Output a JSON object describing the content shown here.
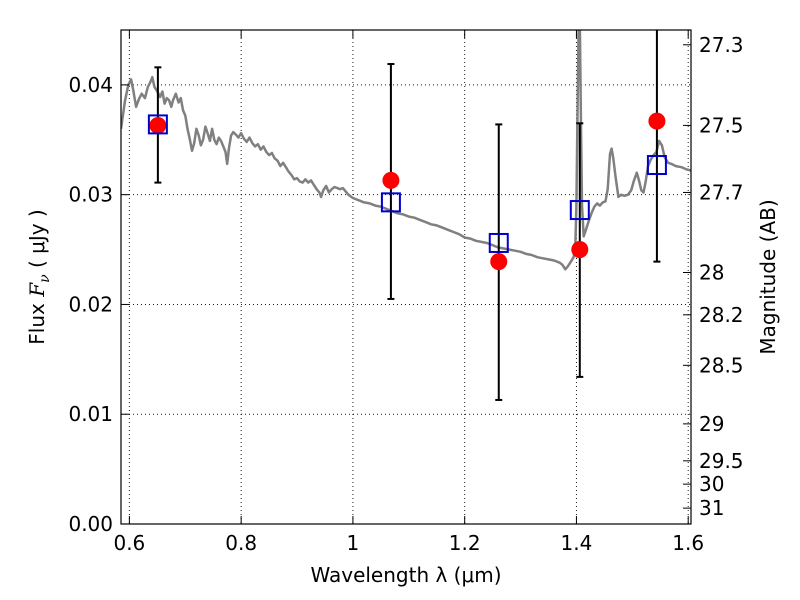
{
  "chart_data": {
    "type": "scatter",
    "xlabel": "Wavelength  λ (μm)",
    "ylabel_prefix": "Flux ",
    "ylabel_sym": "F",
    "ylabel_sub": "ν",
    "ylabel_unit": " ( μJy )",
    "y2label": "Magnitude (AB)",
    "xlim": [
      0.585,
      1.605
    ],
    "ylim": [
      0.0,
      0.045
    ],
    "grid": true,
    "xticks": [
      {
        "value": 0.6,
        "label": "0.6"
      },
      {
        "value": 0.8,
        "label": "0.8"
      },
      {
        "value": 1.0,
        "label": "1"
      },
      {
        "value": 1.2,
        "label": "1.2"
      },
      {
        "value": 1.4,
        "label": "1.4"
      },
      {
        "value": 1.6,
        "label": "1.6"
      }
    ],
    "yticks": [
      {
        "value": 0.0,
        "label": "0.00"
      },
      {
        "value": 0.01,
        "label": "0.01"
      },
      {
        "value": 0.02,
        "label": "0.02"
      },
      {
        "value": 0.03,
        "label": "0.03"
      },
      {
        "value": 0.04,
        "label": "0.04"
      }
    ],
    "y2ticks": [
      {
        "mag": 27.3,
        "label": "27.3"
      },
      {
        "mag": 27.5,
        "label": "27.5"
      },
      {
        "mag": 27.7,
        "label": "27.7"
      },
      {
        "mag": 28.0,
        "label": "28"
      },
      {
        "mag": 28.2,
        "label": "28.2"
      },
      {
        "mag": 28.5,
        "label": "28.5"
      },
      {
        "mag": 29.0,
        "label": "29"
      },
      {
        "mag": 29.5,
        "label": "29.5"
      },
      {
        "mag": 30.0,
        "label": "30"
      },
      {
        "mag": 31.0,
        "label": "31"
      }
    ],
    "model_spectrum": {
      "color": "#808080",
      "points": [
        [
          0.585,
          0.036
        ],
        [
          0.592,
          0.0385
        ],
        [
          0.598,
          0.04
        ],
        [
          0.603,
          0.0405
        ],
        [
          0.607,
          0.0395
        ],
        [
          0.612,
          0.038
        ],
        [
          0.617,
          0.0387
        ],
        [
          0.622,
          0.0392
        ],
        [
          0.628,
          0.0388
        ],
        [
          0.633,
          0.0398
        ],
        [
          0.637,
          0.0402
        ],
        [
          0.641,
          0.0407
        ],
        [
          0.645,
          0.0398
        ],
        [
          0.65,
          0.0394
        ],
        [
          0.655,
          0.0389
        ],
        [
          0.659,
          0.0394
        ],
        [
          0.663,
          0.0383
        ],
        [
          0.667,
          0.0388
        ],
        [
          0.671,
          0.0386
        ],
        [
          0.675,
          0.038
        ],
        [
          0.678,
          0.0386
        ],
        [
          0.683,
          0.0392
        ],
        [
          0.688,
          0.0384
        ],
        [
          0.692,
          0.0388
        ],
        [
          0.696,
          0.0377
        ],
        [
          0.7,
          0.0372
        ],
        [
          0.704,
          0.036
        ],
        [
          0.708,
          0.0351
        ],
        [
          0.712,
          0.034
        ],
        [
          0.716,
          0.0347
        ],
        [
          0.72,
          0.036
        ],
        [
          0.724,
          0.0354
        ],
        [
          0.728,
          0.0345
        ],
        [
          0.732,
          0.035
        ],
        [
          0.736,
          0.0362
        ],
        [
          0.74,
          0.0356
        ],
        [
          0.744,
          0.0349
        ],
        [
          0.748,
          0.036
        ],
        [
          0.752,
          0.035
        ],
        [
          0.756,
          0.0346
        ],
        [
          0.76,
          0.0352
        ],
        [
          0.764,
          0.0349
        ],
        [
          0.768,
          0.0344
        ],
        [
          0.772,
          0.0339
        ],
        [
          0.775,
          0.0328
        ],
        [
          0.778,
          0.0342
        ],
        [
          0.782,
          0.0354
        ],
        [
          0.786,
          0.0357
        ],
        [
          0.79,
          0.0355
        ],
        [
          0.795,
          0.0352
        ],
        [
          0.8,
          0.0356
        ],
        [
          0.805,
          0.0351
        ],
        [
          0.81,
          0.0348
        ],
        [
          0.815,
          0.0352
        ],
        [
          0.82,
          0.0347
        ],
        [
          0.825,
          0.0344
        ],
        [
          0.83,
          0.0346
        ],
        [
          0.835,
          0.0341
        ],
        [
          0.84,
          0.0344
        ],
        [
          0.845,
          0.0339
        ],
        [
          0.85,
          0.0336
        ],
        [
          0.855,
          0.0338
        ],
        [
          0.86,
          0.0333
        ],
        [
          0.865,
          0.0331
        ],
        [
          0.87,
          0.0326
        ],
        [
          0.875,
          0.0329
        ],
        [
          0.88,
          0.0325
        ],
        [
          0.885,
          0.0321
        ],
        [
          0.89,
          0.0318
        ],
        [
          0.895,
          0.0314
        ],
        [
          0.9,
          0.0315
        ],
        [
          0.905,
          0.0312
        ],
        [
          0.91,
          0.0311
        ],
        [
          0.915,
          0.0314
        ],
        [
          0.92,
          0.0311
        ],
        [
          0.925,
          0.0313
        ],
        [
          0.93,
          0.0309
        ],
        [
          0.935,
          0.0305
        ],
        [
          0.94,
          0.0302
        ],
        [
          0.943,
          0.0298
        ],
        [
          0.947,
          0.0304
        ],
        [
          0.952,
          0.0308
        ],
        [
          0.957,
          0.0302
        ],
        [
          0.962,
          0.0305
        ],
        [
          0.967,
          0.0307
        ],
        [
          0.972,
          0.0306
        ],
        [
          0.977,
          0.0305
        ],
        [
          0.982,
          0.0306
        ],
        [
          0.987,
          0.0303
        ],
        [
          0.992,
          0.03
        ],
        [
          1.0,
          0.0297
        ],
        [
          1.01,
          0.0295
        ],
        [
          1.02,
          0.0293
        ],
        [
          1.03,
          0.0292
        ],
        [
          1.04,
          0.029
        ],
        [
          1.05,
          0.0289
        ],
        [
          1.06,
          0.0287
        ],
        [
          1.07,
          0.0285
        ],
        [
          1.08,
          0.0283
        ],
        [
          1.09,
          0.0282
        ],
        [
          1.1,
          0.028
        ],
        [
          1.11,
          0.0279
        ],
        [
          1.12,
          0.0277
        ],
        [
          1.13,
          0.0275
        ],
        [
          1.14,
          0.0273
        ],
        [
          1.15,
          0.0272
        ],
        [
          1.16,
          0.027
        ],
        [
          1.17,
          0.0268
        ],
        [
          1.18,
          0.0266
        ],
        [
          1.19,
          0.0264
        ],
        [
          1.2,
          0.0261
        ],
        [
          1.21,
          0.026
        ],
        [
          1.22,
          0.0258
        ],
        [
          1.23,
          0.0257
        ],
        [
          1.24,
          0.0256
        ],
        [
          1.25,
          0.0254
        ],
        [
          1.26,
          0.0252
        ],
        [
          1.27,
          0.0251
        ],
        [
          1.28,
          0.025
        ],
        [
          1.29,
          0.0249
        ],
        [
          1.3,
          0.0248
        ],
        [
          1.31,
          0.0246
        ],
        [
          1.32,
          0.0245
        ],
        [
          1.33,
          0.0243
        ],
        [
          1.34,
          0.0242
        ],
        [
          1.35,
          0.0241
        ],
        [
          1.36,
          0.024
        ],
        [
          1.37,
          0.0238
        ],
        [
          1.375,
          0.0236
        ],
        [
          1.38,
          0.0232
        ],
        [
          1.385,
          0.0235
        ],
        [
          1.39,
          0.0239
        ],
        [
          1.395,
          0.0243
        ],
        [
          1.398,
          0.0252
        ],
        [
          1.4,
          0.029
        ],
        [
          1.402,
          0.038
        ],
        [
          1.404,
          0.046
        ],
        [
          1.406,
          0.046
        ],
        [
          1.408,
          0.037
        ],
        [
          1.41,
          0.029
        ],
        [
          1.413,
          0.0262
        ],
        [
          1.417,
          0.0268
        ],
        [
          1.422,
          0.0276
        ],
        [
          1.427,
          0.0283
        ],
        [
          1.432,
          0.0289
        ],
        [
          1.437,
          0.0292
        ],
        [
          1.442,
          0.029
        ],
        [
          1.447,
          0.0293
        ],
        [
          1.452,
          0.0294
        ],
        [
          1.456,
          0.0305
        ],
        [
          1.46,
          0.0337
        ],
        [
          1.463,
          0.0342
        ],
        [
          1.466,
          0.0333
        ],
        [
          1.47,
          0.0316
        ],
        [
          1.475,
          0.0298
        ],
        [
          1.48,
          0.03
        ],
        [
          1.486,
          0.0299
        ],
        [
          1.492,
          0.03
        ],
        [
          1.498,
          0.0304
        ],
        [
          1.503,
          0.0313
        ],
        [
          1.508,
          0.032
        ],
        [
          1.512,
          0.0313
        ],
        [
          1.516,
          0.0304
        ],
        [
          1.52,
          0.0302
        ],
        [
          1.524,
          0.0312
        ],
        [
          1.528,
          0.0326
        ],
        [
          1.533,
          0.0332
        ],
        [
          1.538,
          0.0336
        ],
        [
          1.543,
          0.0339
        ],
        [
          1.548,
          0.0349
        ],
        [
          1.553,
          0.0345
        ],
        [
          1.558,
          0.0334
        ],
        [
          1.564,
          0.0329
        ],
        [
          1.57,
          0.0328
        ],
        [
          1.578,
          0.0326
        ],
        [
          1.588,
          0.0325
        ],
        [
          1.597,
          0.0323
        ],
        [
          1.605,
          0.0322
        ]
      ]
    },
    "observed": {
      "color": "#ff0000",
      "points": [
        {
          "x": 0.651,
          "y": 0.0363
        },
        {
          "x": 1.068,
          "y": 0.0313
        },
        {
          "x": 1.261,
          "y": 0.0239
        },
        {
          "x": 1.406,
          "y": 0.025
        },
        {
          "x": 1.544,
          "y": 0.0367
        }
      ]
    },
    "model_fluxes": {
      "color": "#0000cc",
      "points": [
        {
          "x": 0.651,
          "y": 0.0364
        },
        {
          "x": 1.068,
          "y": 0.0293
        },
        {
          "x": 1.261,
          "y": 0.0256
        },
        {
          "x": 1.406,
          "y": 0.0286
        },
        {
          "x": 1.544,
          "y": 0.0327
        }
      ]
    },
    "errorbars": [
      {
        "x": 0.651,
        "low": 0.0311,
        "high": 0.0416
      },
      {
        "x": 1.068,
        "low": 0.0205,
        "high": 0.0419
      },
      {
        "x": 1.261,
        "low": 0.0113,
        "high": 0.0364
      },
      {
        "x": 1.406,
        "low": 0.0134,
        "high": 0.0365
      },
      {
        "x": 1.544,
        "low": 0.0239,
        "high": 0.046
      }
    ]
  }
}
